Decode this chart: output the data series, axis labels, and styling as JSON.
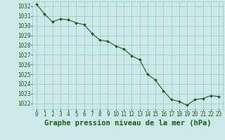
{
  "x": [
    0,
    1,
    2,
    3,
    4,
    5,
    6,
    7,
    8,
    9,
    10,
    11,
    12,
    13,
    14,
    15,
    16,
    17,
    18,
    19,
    20,
    21,
    22,
    23
  ],
  "y": [
    1032.2,
    1031.2,
    1030.4,
    1030.7,
    1030.6,
    1030.3,
    1030.1,
    1029.2,
    1028.5,
    1028.4,
    1027.9,
    1027.6,
    1026.9,
    1026.5,
    1025.0,
    1024.4,
    1023.3,
    1022.4,
    1022.2,
    1021.8,
    1022.4,
    1022.5,
    1022.8,
    1022.7
  ],
  "ylim": [
    1021.4,
    1032.5
  ],
  "yticks": [
    1022,
    1023,
    1024,
    1025,
    1026,
    1027,
    1028,
    1029,
    1030,
    1031,
    1032
  ],
  "xticks": [
    0,
    1,
    2,
    3,
    4,
    5,
    6,
    7,
    8,
    9,
    10,
    11,
    12,
    13,
    14,
    15,
    16,
    17,
    18,
    19,
    20,
    21,
    22,
    23
  ],
  "line_color": "#1a5c1a",
  "marker_color": "#1a5c1a",
  "bg_color": "#cce8e8",
  "grid_color": "#99cccc",
  "text_color": "#1a5c1a",
  "xlabel": "Graphe pression niveau de la mer (hPa)",
  "tick_fontsize": 5.5,
  "label_fontsize": 7.5
}
